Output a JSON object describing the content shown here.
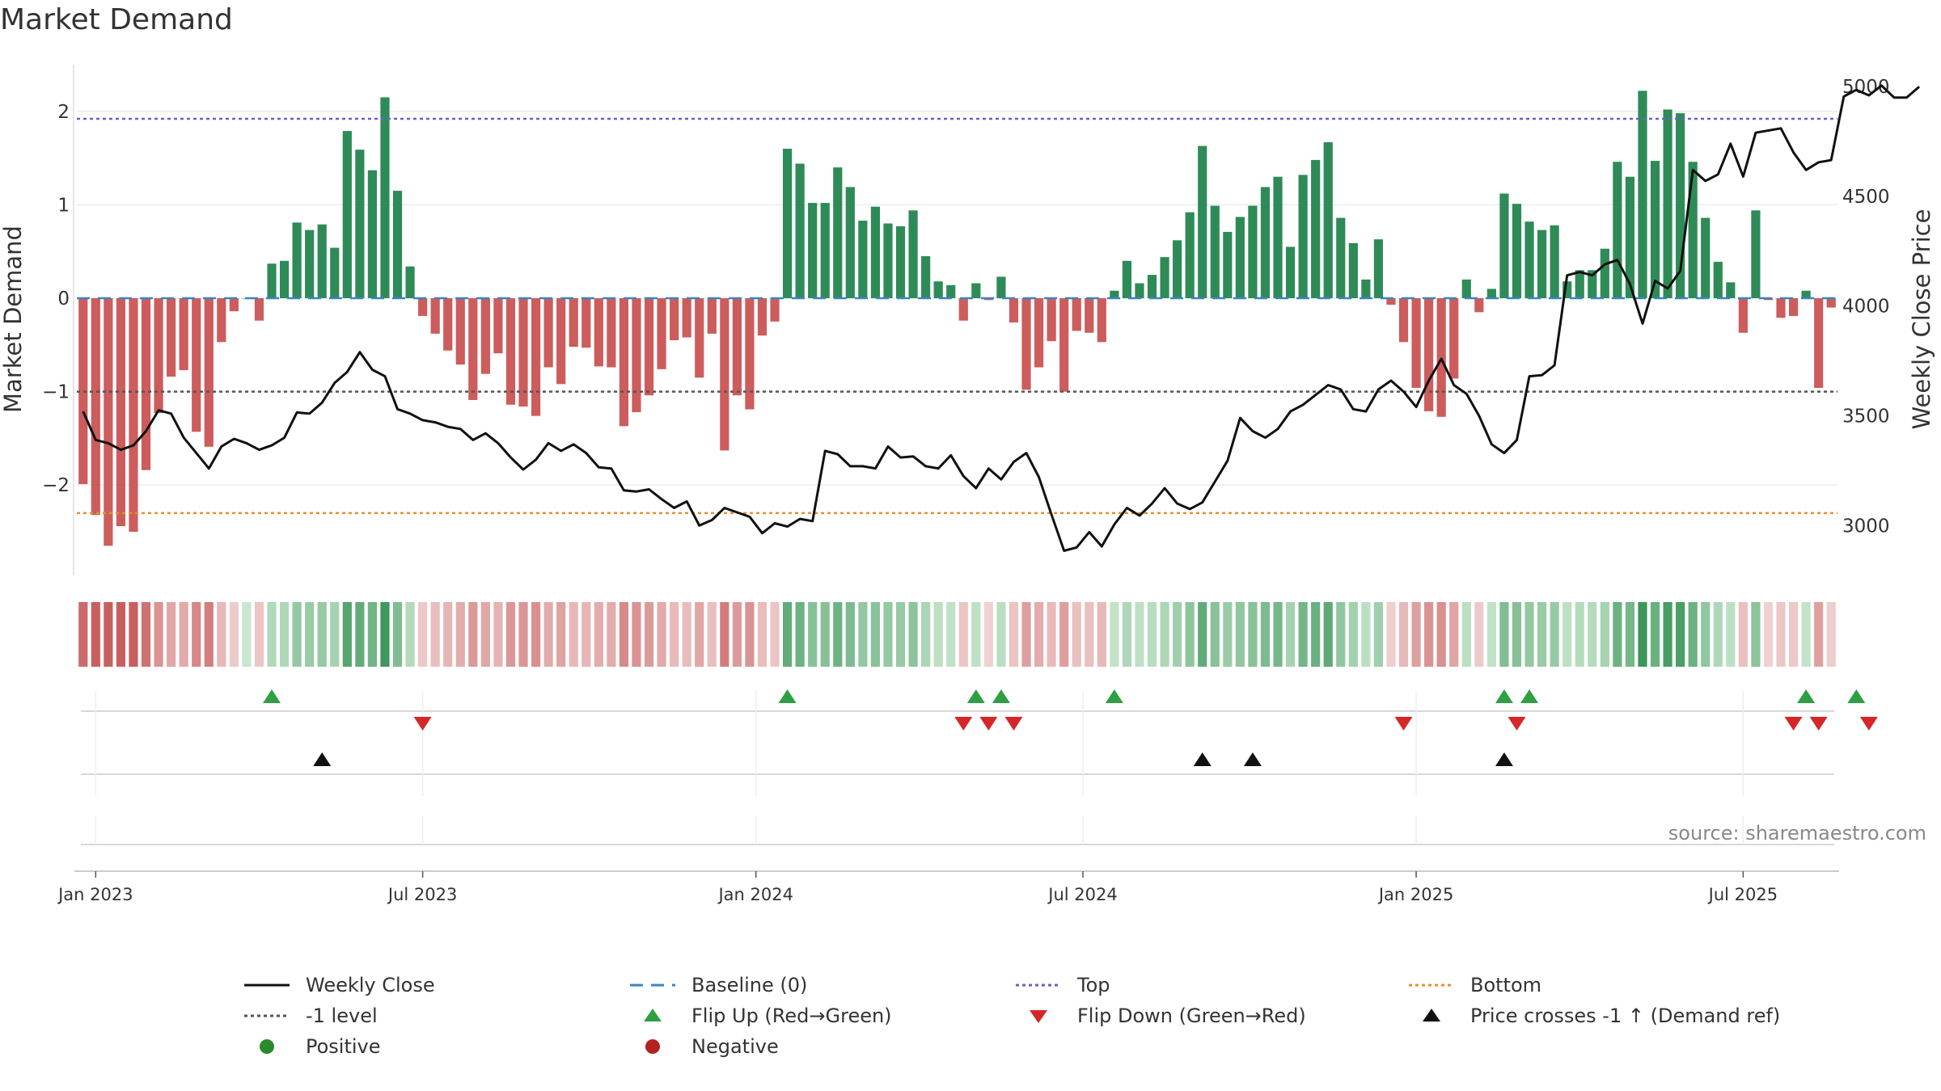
{
  "title": "Market Demand",
  "source": "source: sharemaestro.com",
  "chart_data": {
    "type": "bar+line",
    "left_axis": {
      "label": "Market Demand",
      "ticks": [
        -2,
        -1,
        0,
        1,
        2
      ],
      "tick_labels": [
        "−2",
        "−1",
        "0",
        "1",
        "2"
      ],
      "ylim": [
        -2.95,
        2.5
      ]
    },
    "right_axis": {
      "label": "Weekly Close Price",
      "ticks": [
        3000,
        3500,
        4000,
        4500,
        5000
      ],
      "tick_labels": [
        "3000",
        "3500",
        "4000",
        "4500",
        "5000"
      ],
      "ylim": [
        2780,
        5100
      ]
    },
    "x_ticks": [
      {
        "label": "Jan 2023",
        "index": 1
      },
      {
        "label": "Jul 2023",
        "index": 27
      },
      {
        "label": "Jan 2024",
        "index": 53.5
      },
      {
        "label": "Jul 2024",
        "index": 79.5
      },
      {
        "label": "Jan 2025",
        "index": 106
      },
      {
        "label": "Jul 2025",
        "index": 132
      }
    ],
    "reference_lines": {
      "top": 1.92,
      "bottom": -2.3,
      "minus_one": -1,
      "baseline": 0
    },
    "series": [
      {
        "name": "Market Demand",
        "values": [
          -1.99,
          -2.32,
          -2.65,
          -2.44,
          -2.5,
          -1.84,
          -1.23,
          -0.84,
          -0.77,
          -1.43,
          -1.59,
          -0.47,
          -0.14,
          0,
          -0.24,
          0.37,
          0.4,
          0.81,
          0.73,
          0.79,
          0.54,
          1.79,
          1.59,
          1.37,
          2.15,
          1.15,
          0.34,
          -0.19,
          -0.38,
          -0.56,
          -0.71,
          -1.09,
          -0.81,
          -0.59,
          -1.14,
          -1.16,
          -1.26,
          -0.74,
          -0.92,
          -0.52,
          -0.53,
          -0.73,
          -0.74,
          -1.37,
          -1.22,
          -1.04,
          -0.76,
          -0.45,
          -0.42,
          -0.85,
          -0.38,
          -1.63,
          -1.04,
          -1.19,
          -0.4,
          -0.25,
          1.6,
          1.44,
          1.02,
          1.02,
          1.4,
          1.19,
          0.83,
          0.98,
          0.8,
          0.77,
          0.94,
          0.45,
          0.18,
          0.14,
          -0.24,
          0.16,
          -0.02,
          0.23,
          -0.26,
          -0.98,
          -0.74,
          -0.46,
          -1,
          -0.35,
          -0.37,
          -0.47,
          0.08,
          0.4,
          0.16,
          0.25,
          0.44,
          0.62,
          0.92,
          1.63,
          0.99,
          0.71,
          0.87,
          0.99,
          1.19,
          1.3,
          0.55,
          1.32,
          1.48,
          1.67,
          0.86,
          0.59,
          0.2,
          0.63,
          -0.07,
          -0.47,
          -0.96,
          -1.21,
          -1.27,
          -0.86,
          0.2,
          -0.15,
          0.1,
          1.12,
          1.01,
          0.82,
          0.73,
          0.78,
          0.18,
          0.3,
          0.3,
          0.53,
          1.46,
          1.3,
          2.22,
          1.47,
          2.02,
          1.98,
          1.46,
          0.86,
          0.39,
          0.17,
          -0.37,
          0.94,
          -0.02,
          -0.21,
          -0.19,
          0.08,
          -0.96,
          -0.1
        ]
      },
      {
        "name": "Weekly Close",
        "values": [
          3520,
          3390,
          3375,
          3345,
          3365,
          3430,
          3525,
          3510,
          3400,
          3330,
          3260,
          3360,
          3395,
          3375,
          3345,
          3365,
          3400,
          3515,
          3510,
          3560,
          3650,
          3700,
          3790,
          3710,
          3680,
          3530,
          3510,
          3480,
          3470,
          3450,
          3440,
          3390,
          3420,
          3375,
          3310,
          3255,
          3300,
          3375,
          3340,
          3370,
          3330,
          3265,
          3260,
          3160,
          3155,
          3165,
          3120,
          3080,
          3110,
          3000,
          3025,
          3080,
          3060,
          3040,
          2965,
          3010,
          2995,
          3030,
          3020,
          3340,
          3325,
          3270,
          3270,
          3260,
          3360,
          3310,
          3315,
          3270,
          3260,
          3320,
          3225,
          3170,
          3260,
          3210,
          3290,
          3330,
          3220,
          3050,
          2885,
          2900,
          2970,
          2905,
          3005,
          3080,
          3045,
          3100,
          3170,
          3100,
          3075,
          3105,
          3200,
          3295,
          3490,
          3430,
          3400,
          3440,
          3520,
          3550,
          3595,
          3640,
          3620,
          3530,
          3520,
          3620,
          3660,
          3610,
          3540,
          3660,
          3760,
          3640,
          3600,
          3500,
          3370,
          3330,
          3390,
          3680,
          3685,
          3730,
          4140,
          4155,
          4140,
          4190,
          4210,
          4100,
          3920,
          4115,
          4080,
          4160,
          4620,
          4570,
          4600,
          4740,
          4590,
          4790,
          4800,
          4810,
          4700,
          4620,
          4655,
          4665,
          4955,
          4985,
          4960,
          5005,
          4950,
          4950,
          5000
        ]
      }
    ],
    "demand_strip": {
      "name": "Market Demand intensity",
      "values_source": "Market Demand"
    },
    "events": {
      "flip_up": [
        15,
        56,
        71,
        73,
        82,
        113,
        115,
        137,
        141
      ],
      "flip_down": [
        27,
        70,
        72,
        74,
        105,
        114,
        136,
        138,
        142
      ],
      "price_crosses_minus_one_up": [
        19,
        89,
        93,
        113
      ]
    },
    "legend": [
      {
        "key": "weekly_close",
        "label": "Weekly Close",
        "marker": "solid-line",
        "color": "#111111"
      },
      {
        "key": "baseline",
        "label": "Baseline (0)",
        "marker": "dashed-line",
        "color": "#3a84c1"
      },
      {
        "key": "top",
        "label": "Top",
        "marker": "dotted-line",
        "color": "#6a5fd0"
      },
      {
        "key": "bottom",
        "label": "Bottom",
        "marker": "dotted-line",
        "color": "#e3912c"
      },
      {
        "key": "minus_one",
        "label": "-1 level",
        "marker": "dotted-line",
        "color": "#555555"
      },
      {
        "key": "flip_up",
        "label": "Flip Up (Red→Green)",
        "marker": "triangle-up",
        "color": "#2ea043"
      },
      {
        "key": "flip_down",
        "label": "Flip Down (Green→Red)",
        "marker": "triangle-down",
        "color": "#d62728"
      },
      {
        "key": "cross",
        "label": "Price crosses -1 ↑ (Demand ref)",
        "marker": "triangle-up",
        "color": "#111111"
      },
      {
        "key": "positive",
        "label": "Positive",
        "marker": "dot",
        "color": "#2b8a2b"
      },
      {
        "key": "negative",
        "label": "Negative",
        "marker": "dot",
        "color": "#b22222"
      }
    ]
  },
  "colors": {
    "positive_bar": "#2e8b57",
    "negative_bar": "#cd5c5c",
    "grid": "#ececec",
    "axis_text": "#333333"
  }
}
